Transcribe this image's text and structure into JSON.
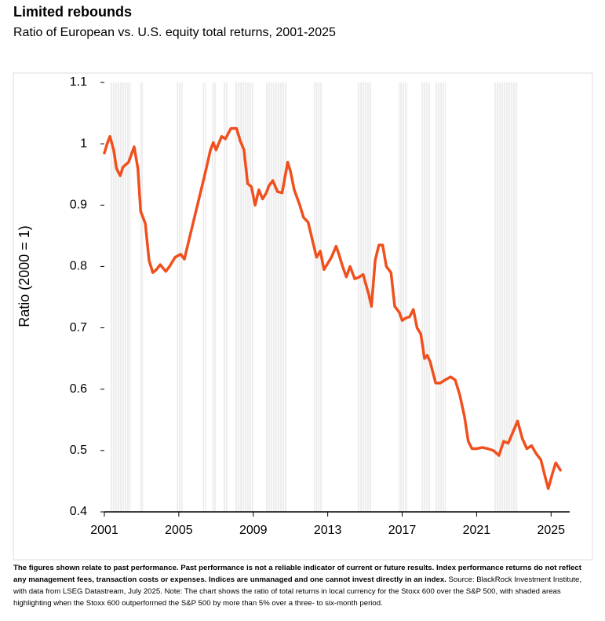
{
  "chart_data": {
    "type": "line",
    "title": "Limited rebounds",
    "subtitle": "Ratio of European vs. U.S. equity total returns, 2001-2025",
    "y_label": "Ratio (2000 = 1)",
    "footnote_bold": "The figures shown relate to past performance. Past performance is not a reliable indicator of current or future results. Index performance returns do not reflect any management fees, transaction costs or expenses. Indices are unmanaged and one cannot invest directly in an index.",
    "footnote": "Source: BlackRock Investment Institute, with data from LSEG Datastream, July 2025. Note: The chart shows the ratio of total returns in local currency for the Stoxx 600 over the S&P 500, with shaded areas highlighting when the Stoxx 600 outperformed the S&P 500 by more than 5% over a three- to six-month period.",
    "color": "#f0501e",
    "xlim": [
      2001,
      2026
    ],
    "xticks": [
      2001,
      2005,
      2009,
      2013,
      2017,
      2021,
      2025
    ],
    "ylim": [
      0.4,
      1.1
    ],
    "yticks": [
      0.4,
      0.5,
      0.6,
      0.7,
      0.8,
      0.9,
      1,
      1.1
    ],
    "shaded_periods": [
      [
        2001.3,
        2002.4
      ],
      [
        2002.9,
        2003.1
      ],
      [
        2004.9,
        2005.2
      ],
      [
        2006.3,
        2006.45
      ],
      [
        2006.8,
        2007.0
      ],
      [
        2007.4,
        2007.6
      ],
      [
        2008.0,
        2009.0
      ],
      [
        2009.65,
        2010.8
      ],
      [
        2012.25,
        2012.7
      ],
      [
        2014.6,
        2015.35
      ],
      [
        2016.8,
        2017.3
      ],
      [
        2018.05,
        2018.55
      ],
      [
        2018.8,
        2019.35
      ],
      [
        2021.95,
        2023.2
      ]
    ],
    "x": [
      2001.0,
      2001.15,
      2001.3,
      2001.5,
      2001.65,
      2001.85,
      2002.0,
      2002.3,
      2002.6,
      2002.8,
      2002.95,
      2003.2,
      2003.4,
      2003.6,
      2003.8,
      2004.0,
      2004.3,
      2004.5,
      2004.8,
      2005.1,
      2005.3,
      2005.6,
      2006.0,
      2006.4,
      2006.7,
      2006.85,
      2007.0,
      2007.3,
      2007.5,
      2007.8,
      2008.1,
      2008.3,
      2008.5,
      2008.7,
      2008.9,
      2009.1,
      2009.3,
      2009.5,
      2009.7,
      2009.85,
      2010.05,
      2010.3,
      2010.55,
      2010.7,
      2010.85,
      2011.0,
      2011.2,
      2011.5,
      2011.7,
      2011.95,
      2012.2,
      2012.4,
      2012.6,
      2012.8,
      2013.0,
      2013.2,
      2013.45,
      2013.6,
      2013.8,
      2014.0,
      2014.2,
      2014.45,
      2014.65,
      2014.9,
      2015.2,
      2015.35,
      2015.55,
      2015.75,
      2015.95,
      2016.15,
      2016.4,
      2016.6,
      2016.85,
      2017.0,
      2017.2,
      2017.4,
      2017.6,
      2017.8,
      2018.0,
      2018.2,
      2018.35,
      2018.5,
      2018.8,
      2019.05,
      2019.3,
      2019.6,
      2019.85,
      2020.1,
      2020.35,
      2020.55,
      2020.75,
      2021.0,
      2021.3,
      2021.6,
      2021.9,
      2022.2,
      2022.45,
      2022.7,
      2022.95,
      2023.2,
      2023.45,
      2023.7,
      2023.95,
      2024.2,
      2024.45,
      2024.7,
      2024.85,
      2025.05,
      2025.25,
      2025.5
    ],
    "values": [
      0.985,
      1.0,
      1.012,
      0.99,
      0.96,
      0.948,
      0.962,
      0.97,
      0.995,
      0.96,
      0.89,
      0.87,
      0.81,
      0.79,
      0.795,
      0.803,
      0.792,
      0.8,
      0.815,
      0.82,
      0.812,
      0.85,
      0.9,
      0.95,
      0.99,
      1.002,
      0.99,
      1.012,
      1.008,
      1.025,
      1.025,
      1.005,
      0.99,
      0.935,
      0.93,
      0.9,
      0.925,
      0.91,
      0.92,
      0.932,
      0.94,
      0.922,
      0.92,
      0.945,
      0.97,
      0.955,
      0.925,
      0.9,
      0.88,
      0.872,
      0.84,
      0.815,
      0.825,
      0.795,
      0.805,
      0.815,
      0.833,
      0.82,
      0.8,
      0.783,
      0.8,
      0.78,
      0.782,
      0.787,
      0.755,
      0.735,
      0.81,
      0.835,
      0.835,
      0.8,
      0.79,
      0.735,
      0.725,
      0.712,
      0.716,
      0.718,
      0.73,
      0.7,
      0.69,
      0.65,
      0.655,
      0.645,
      0.61,
      0.61,
      0.615,
      0.62,
      0.615,
      0.59,
      0.555,
      0.515,
      0.503,
      0.503,
      0.505,
      0.503,
      0.5,
      0.492,
      0.515,
      0.512,
      0.53,
      0.548,
      0.52,
      0.503,
      0.508,
      0.495,
      0.485,
      0.455,
      0.438,
      0.46,
      0.48,
      0.468
    ]
  }
}
